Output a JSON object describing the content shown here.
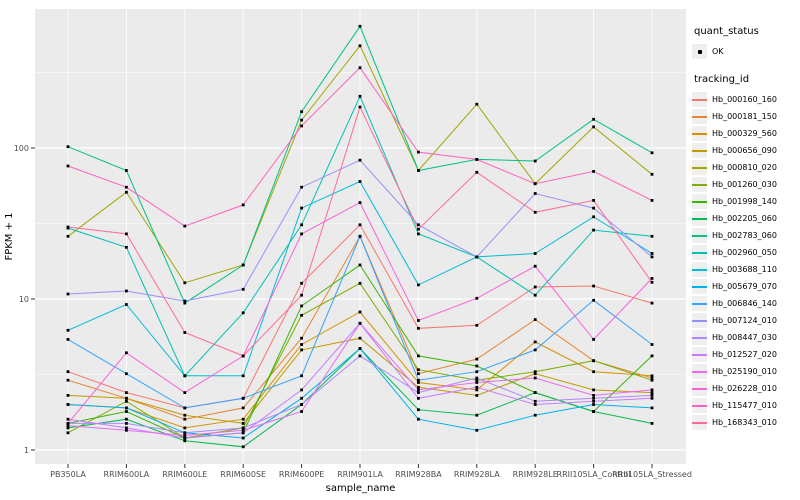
{
  "figure": {
    "panel_bg": "#EBEBEB",
    "grid_color": "#FFFFFF",
    "tick_color": "#333333",
    "tick_label_color": "#4D4D4D",
    "axis_title_color": "#000000",
    "point_color": "#000000",
    "legend_key_bg": "#EFEFEF"
  },
  "chart_data": {
    "type": "line",
    "title": "",
    "xlabel": "sample_name",
    "ylabel": "FPKM + 1",
    "y_scale": "log10",
    "y_ticks": [
      1,
      10,
      100
    ],
    "y_tick_labels": [
      "1",
      "10",
      "100"
    ],
    "y_minor_ticks": [
      3.1623,
      31.623,
      316.23
    ],
    "ylim": [
      0.93,
      830
    ],
    "grid": true,
    "legend_position": "right",
    "categories": [
      "PB350LA",
      "RRIM600LA",
      "RRIM600LE",
      "RRIM600SE",
      "RRIM600PE",
      "RRIM901LA",
      "RRIM928BA",
      "RRIM928LA",
      "RRIM928LE",
      "RRII105LA_Control",
      "RRII105LA_Stressed"
    ],
    "series": [
      {
        "name": "Hb_000160_160",
        "color": "#F8766D",
        "values": [
          3.3,
          2.4,
          1.9,
          2.2,
          12.7,
          31,
          6.4,
          6.7,
          12,
          12.2,
          9.4
        ]
      },
      {
        "name": "Hb_000181_150",
        "color": "#EA8331",
        "values": [
          2.9,
          2.2,
          1.6,
          1.9,
          5.5,
          26,
          3.2,
          4.0,
          7.3,
          3.9,
          3.0
        ]
      },
      {
        "name": "Hb_000329_560",
        "color": "#D89000",
        "values": [
          2.0,
          1.9,
          1.4,
          1.6,
          5.0,
          8.2,
          2.8,
          2.5,
          5.2,
          3.3,
          3.1
        ]
      },
      {
        "name": "Hb_000656_090",
        "color": "#C09B00",
        "values": [
          2.3,
          2.2,
          1.7,
          1.5,
          4.6,
          5.5,
          2.6,
          2.3,
          3.2,
          2.5,
          2.4
        ]
      },
      {
        "name": "Hb_000810_020",
        "color": "#A3A500",
        "values": [
          26,
          51,
          12.8,
          16.8,
          153,
          475,
          71,
          195,
          58,
          138,
          67
        ]
      },
      {
        "name": "Hb_001260_030",
        "color": "#7CAE00",
        "values": [
          1.3,
          2.1,
          1.2,
          1.4,
          7.8,
          12.7,
          3.4,
          2.9,
          3.3,
          3.9,
          2.9
        ]
      },
      {
        "name": "Hb_001998_140",
        "color": "#39B600",
        "values": [
          1.5,
          1.8,
          1.2,
          1.3,
          9.0,
          16.8,
          4.2,
          3.6,
          2.4,
          1.8,
          4.2
        ]
      },
      {
        "name": "Hb_002205_060",
        "color": "#00BB4E",
        "values": [
          1.4,
          1.6,
          1.15,
          1.05,
          2.0,
          4.7,
          1.85,
          1.7,
          2.4,
          1.8,
          1.5
        ]
      },
      {
        "name": "Hb_002783_060",
        "color": "#00C087",
        "values": [
          102,
          71,
          9.4,
          16.8,
          174,
          640,
          71,
          84,
          82,
          155,
          93
        ]
      },
      {
        "name": "Hb_002960_050",
        "color": "#00C0AF",
        "values": [
          29.5,
          22,
          3.1,
          8.1,
          31,
          220,
          27,
          19,
          10.6,
          28.6,
          26
        ]
      },
      {
        "name": "Hb_003688_110",
        "color": "#00BCD8",
        "values": [
          6.2,
          9.2,
          3.1,
          3.1,
          40,
          60,
          12.4,
          19,
          20,
          35,
          20
        ]
      },
      {
        "name": "Hb_005679_070",
        "color": "#00B0F6",
        "values": [
          2.0,
          1.9,
          1.3,
          1.2,
          2.2,
          4.7,
          1.6,
          1.35,
          1.7,
          2.0,
          1.9
        ]
      },
      {
        "name": "Hb_006846_140",
        "color": "#35A2FF",
        "values": [
          5.4,
          3.2,
          1.9,
          2.2,
          3.1,
          26,
          2.9,
          3.3,
          4.6,
          9.8,
          5.0
        ]
      },
      {
        "name": "Hb_007124_010",
        "color": "#9590FF",
        "values": [
          10.8,
          11.3,
          9.7,
          11.6,
          55,
          83,
          31,
          19,
          50,
          40,
          19
        ]
      },
      {
        "name": "Hb_008447_030",
        "color": "#AE87FF",
        "values": [
          1.5,
          1.5,
          1.3,
          1.4,
          2.0,
          4.2,
          2.4,
          3.0,
          2.1,
          2.2,
          2.3
        ]
      },
      {
        "name": "Hb_012527_020",
        "color": "#C77CFF",
        "values": [
          1.6,
          1.4,
          1.2,
          1.3,
          2.5,
          6.9,
          2.2,
          2.6,
          2.0,
          2.1,
          2.2
        ]
      },
      {
        "name": "Hb_025190_010",
        "color": "#E76BF3",
        "values": [
          1.45,
          1.35,
          1.25,
          1.35,
          1.8,
          6.9,
          2.5,
          2.8,
          3.0,
          2.3,
          2.5
        ]
      },
      {
        "name": "Hb_026228_010",
        "color": "#FA62DB",
        "values": [
          1.5,
          4.4,
          2.4,
          4.2,
          27,
          43.5,
          7.2,
          10.1,
          16.5,
          5.4,
          13.7
        ]
      },
      {
        "name": "Hb_115477_010",
        "color": "#FF62BC",
        "values": [
          76,
          55,
          30.4,
          42,
          140,
          340,
          94,
          84,
          58,
          70,
          45
        ]
      },
      {
        "name": "Hb_168343_010",
        "color": "#FF6A98",
        "values": [
          30,
          27,
          6.0,
          4.2,
          10.6,
          187,
          29,
          69,
          37.5,
          45,
          12.9
        ]
      }
    ],
    "legend": {
      "quant_status_title": "quant_status",
      "ok_label": "OK",
      "tracking_id_title": "tracking_id"
    }
  }
}
